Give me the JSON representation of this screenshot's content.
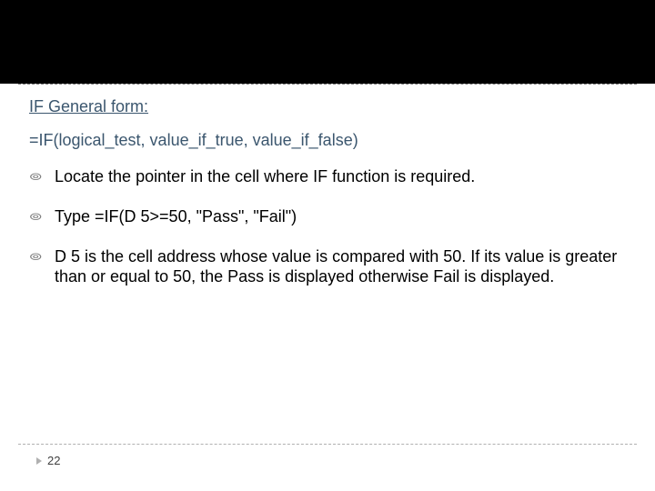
{
  "colors": {
    "top_band": "#000000",
    "heading_text": "#3b566e",
    "body_text": "#000000",
    "bullet_marker": "#808080",
    "dash_line": "#b0b0b0",
    "page_marker": "#b0b0b0",
    "page_num": "#404040",
    "background": "#ffffff"
  },
  "typography": {
    "heading_fontsize": 18,
    "formula_fontsize": 18,
    "body_fontsize": 18,
    "page_num_fontsize": 13,
    "font_family": "Arial"
  },
  "heading": "IF General form:",
  "formula": "=IF(logical_test, value_if_true, value_if_false)",
  "bullets": [
    "Locate the pointer in the cell where IF function is required.",
    "Type =IF(D 5>=50, \"Pass\", \"Fail\")",
    "D 5 is the cell address whose value is compared with 50. If its value is greater than or equal to 50, the Pass is displayed otherwise Fail is displayed."
  ],
  "bullet_glyph": "๏",
  "page_number": "22"
}
